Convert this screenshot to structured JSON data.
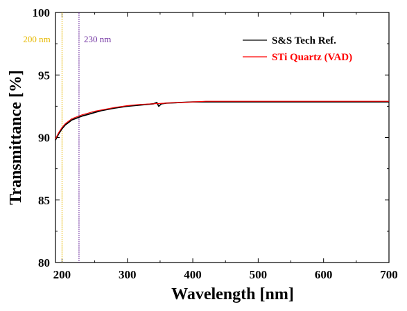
{
  "chart_data": {
    "type": "line",
    "xlabel": "Wavelength [nm]",
    "ylabel": "Transmittance [%]",
    "xlim": [
      190,
      700
    ],
    "ylim": [
      80,
      100
    ],
    "xticks": [
      200,
      300,
      400,
      500,
      600,
      700
    ],
    "yticks": [
      80,
      85,
      90,
      95,
      100
    ],
    "legend_position": "top-right",
    "grid": false,
    "series": [
      {
        "name": "S&S Tech Ref.",
        "color": "#000000",
        "x": [
          190,
          195,
          200,
          205,
          210,
          215,
          220,
          230,
          240,
          250,
          260,
          280,
          300,
          320,
          340,
          345,
          348,
          352,
          360,
          380,
          400,
          420,
          450,
          500,
          550,
          600,
          650,
          700
        ],
        "y": [
          89.8,
          90.3,
          90.7,
          91.0,
          91.2,
          91.4,
          91.5,
          91.7,
          91.85,
          92.0,
          92.15,
          92.35,
          92.5,
          92.6,
          92.7,
          92.8,
          92.5,
          92.7,
          92.75,
          92.8,
          92.85,
          92.85,
          92.85,
          92.85,
          92.85,
          92.85,
          92.85,
          92.85
        ]
      },
      {
        "name": "STi Quartz (VAD)",
        "color": "#ff0000",
        "x": [
          190,
          195,
          200,
          205,
          210,
          215,
          220,
          230,
          240,
          250,
          260,
          280,
          300,
          320,
          340,
          360,
          380,
          400,
          420,
          450,
          500,
          550,
          600,
          650,
          700
        ],
        "y": [
          89.9,
          90.4,
          90.8,
          91.1,
          91.3,
          91.5,
          91.6,
          91.8,
          91.95,
          92.1,
          92.2,
          92.4,
          92.55,
          92.65,
          92.7,
          92.75,
          92.8,
          92.85,
          92.9,
          92.9,
          92.9,
          92.9,
          92.9,
          92.9,
          92.9
        ]
      }
    ],
    "annotations": [
      {
        "x": 200,
        "text": "200 nm",
        "color": "#e6b800"
      },
      {
        "x": 226,
        "text": "230 nm",
        "color": "#7030a0"
      }
    ]
  }
}
